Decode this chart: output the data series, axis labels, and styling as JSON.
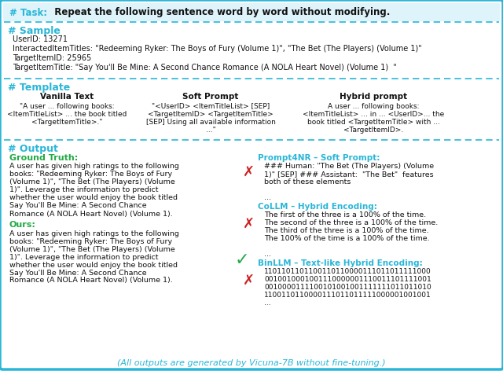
{
  "bg_color": "#ffffff",
  "border_color": "#29b6d8",
  "dashed_color": "#29b6d8",
  "cyan_heading": "#29b6d8",
  "green_text": "#22aa44",
  "red_x_color": "#cc2222",
  "black_text": "#111111",
  "task_label": "# Task:",
  "task_text": "  Repeat the following sentence word by word without modifying.",
  "sample_heading": "# Sample",
  "sample_lines": [
    "UserID: 13271",
    "InteractedItemTitles: \"Redeeming Ryker: The Boys of Fury (Volume 1)\", \"The Bet (The Players) (Volume 1)\"",
    "TargetItemID: 25965",
    "TargetItemTitle: \"Say You'll Be Mine: A Second Chance Romance (A NOLA Heart Novel) (Volume 1)  \""
  ],
  "template_heading": "# Template",
  "vanilla_title": "Vanilla Text",
  "vanilla_lines": [
    "\"A user ... following books:",
    "<ItemTitleList> ... the book titled",
    "<TargetItemTitle>.\""
  ],
  "soft_title": "Soft Prompt",
  "soft_lines": [
    "\"<UserID> <ItemTitleList> [SEP]",
    "<TargetItemID> <TargetItemTitle>",
    "[SEP] Using all available information",
    "...\""
  ],
  "hybrid_title": "Hybrid prompt",
  "hybrid_lines": [
    "A user ... following books:",
    "<ItemTitleList> ... in ... <UserID>... the",
    "book titled <TargetItemTitle> with ...",
    "<TargetItemID>."
  ],
  "output_heading": "# Output",
  "gt_title": "Ground Truth:",
  "gt_lines": [
    "A user has given high ratings to the following",
    "books: \"Redeeming Ryker: The Boys of Fury",
    "(Volume 1)\", \"The Bet (The Players) (Volume",
    "1)\". Leverage the information to predict",
    "whether the user would enjoy the book titled",
    "Say You'll Be Mine: A Second Chance",
    "Romance (A NOLA Heart Novel) (Volume 1)."
  ],
  "ours_title": "Ours:",
  "ours_lines": [
    "A user has given high ratings to the following",
    "books: \"Redeeming Ryker: The Boys of Fury",
    "(Volume 1)\", \"The Bet (The Players) (Volume",
    "1)\". Leverage the information to predict",
    "whether the user would enjoy the book titled",
    "Say You'll Be Mine: A Second Chance",
    "Romance (A NOLA Heart Novel) (Volume 1)."
  ],
  "p4nr_title": "Prompt4NR – Soft Prompt:",
  "p4nr_lines": [
    "### Human: \"The Bet (The Players) (Volume",
    "1)\" [SEP] ### Assistant:  \"The Bet\"  features",
    "both of these elements",
    "",
    "..."
  ],
  "collm_title": "CoLLM – Hybrid Encoding:",
  "collm_lines": [
    "The first of the three is a 100% of the time.",
    "The second of the three is a 100% of the time.",
    "The third of the three is a 100% of the time.",
    "The 100% of the time is a 100% of the time.",
    "",
    "..."
  ],
  "binllm_title": "BinLLM – Text-like Hybrid Encoding:",
  "binllm_lines": [
    "1101101101100110110000111011011111000",
    "0010010001001110000001110011101111001",
    "0010000111100101001001111111011011010",
    "1100110110000111011011111000001001001",
    "..."
  ],
  "footer": "(All outputs are generated by Vicuna-7B without fine-tuning.)"
}
